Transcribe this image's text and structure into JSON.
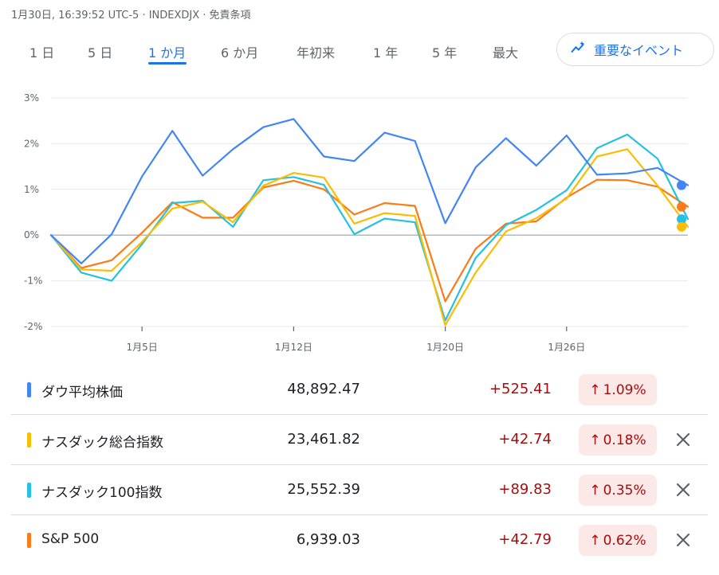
{
  "header": {
    "meta": "1月30日, 16:39:52 UTC-5 · INDEXDJX · 免責条項"
  },
  "tabs": [
    {
      "label": "1 日",
      "active": false
    },
    {
      "label": "5 日",
      "active": false
    },
    {
      "label": "1 か月",
      "active": true
    },
    {
      "label": "6 か月",
      "active": false
    },
    {
      "label": "年初来",
      "active": false
    },
    {
      "label": "1 年",
      "active": false
    },
    {
      "label": "5 年",
      "active": false
    },
    {
      "label": "最大",
      "active": false
    }
  ],
  "event_button": {
    "label": "重要なイベント",
    "icon": "trend-sparkle-icon"
  },
  "colors": {
    "accent": "#1a73e8",
    "dow": "#4285f4",
    "nasdaq": "#fbbc04",
    "nasdaq100": "#24c1e0",
    "sp500": "#fa7b17",
    "positive_text": "#a50e0e",
    "positive_bg": "#fce8e6"
  },
  "chart_data": {
    "type": "line",
    "x_ticks": [
      "1月5日",
      "1月12日",
      "1月20日",
      "1月26日"
    ],
    "y_ticks": [
      "3%",
      "2%",
      "1%",
      "0%",
      "-1%",
      "-2%"
    ],
    "ylim": [
      -2,
      3
    ],
    "baseline": 0,
    "series": [
      {
        "name": "ダウ平均株価",
        "color_key": "dow",
        "values": [
          0,
          -0.62,
          0.02,
          1.28,
          2.28,
          1.3,
          1.88,
          2.36,
          2.54,
          1.72,
          1.62,
          2.24,
          2.06,
          0.26,
          1.48,
          2.12,
          1.52,
          2.18,
          1.32,
          1.35,
          1.47,
          1.09
        ]
      },
      {
        "name": "ナスダック総合指数",
        "color_key": "nasdaq",
        "values": [
          0,
          -0.75,
          -0.78,
          -0.15,
          0.58,
          0.73,
          0.28,
          1.08,
          1.36,
          1.26,
          0.25,
          0.48,
          0.42,
          -1.97,
          -0.82,
          0.08,
          0.37,
          0.8,
          1.72,
          1.88,
          1.08,
          0.18
        ]
      },
      {
        "name": "ナスダック100指数",
        "color_key": "nasdaq100",
        "values": [
          0,
          -0.82,
          -1.0,
          -0.2,
          0.7,
          0.75,
          0.18,
          1.2,
          1.27,
          1.1,
          0.02,
          0.36,
          0.28,
          -1.87,
          -0.5,
          0.22,
          0.55,
          0.98,
          1.9,
          2.2,
          1.67,
          0.35
        ]
      },
      {
        "name": "S&P 500",
        "color_key": "sp500",
        "values": [
          0,
          -0.72,
          -0.55,
          0.05,
          0.72,
          0.38,
          0.38,
          1.04,
          1.19,
          1.0,
          0.45,
          0.7,
          0.64,
          -1.45,
          -0.3,
          0.25,
          0.3,
          0.82,
          1.21,
          1.2,
          1.06,
          0.62
        ]
      }
    ]
  },
  "rows": [
    {
      "name": "ダウ平均株価",
      "value": "48,892.47",
      "change": "+525.41",
      "pct": "1.09%",
      "arrow": "↑",
      "color_key": "dow",
      "removable": false
    },
    {
      "name": "ナスダック総合指数",
      "value": "23,461.82",
      "change": "+42.74",
      "pct": "0.18%",
      "arrow": "↑",
      "color_key": "nasdaq",
      "removable": true
    },
    {
      "name": "ナスダック100指数",
      "value": "25,552.39",
      "change": "+89.83",
      "pct": "0.35%",
      "arrow": "↑",
      "color_key": "nasdaq100",
      "removable": true
    },
    {
      "name": "S&P 500",
      "value": "6,939.03",
      "change": "+42.79",
      "pct": "0.62%",
      "arrow": "↑",
      "color_key": "sp500",
      "removable": true
    }
  ]
}
